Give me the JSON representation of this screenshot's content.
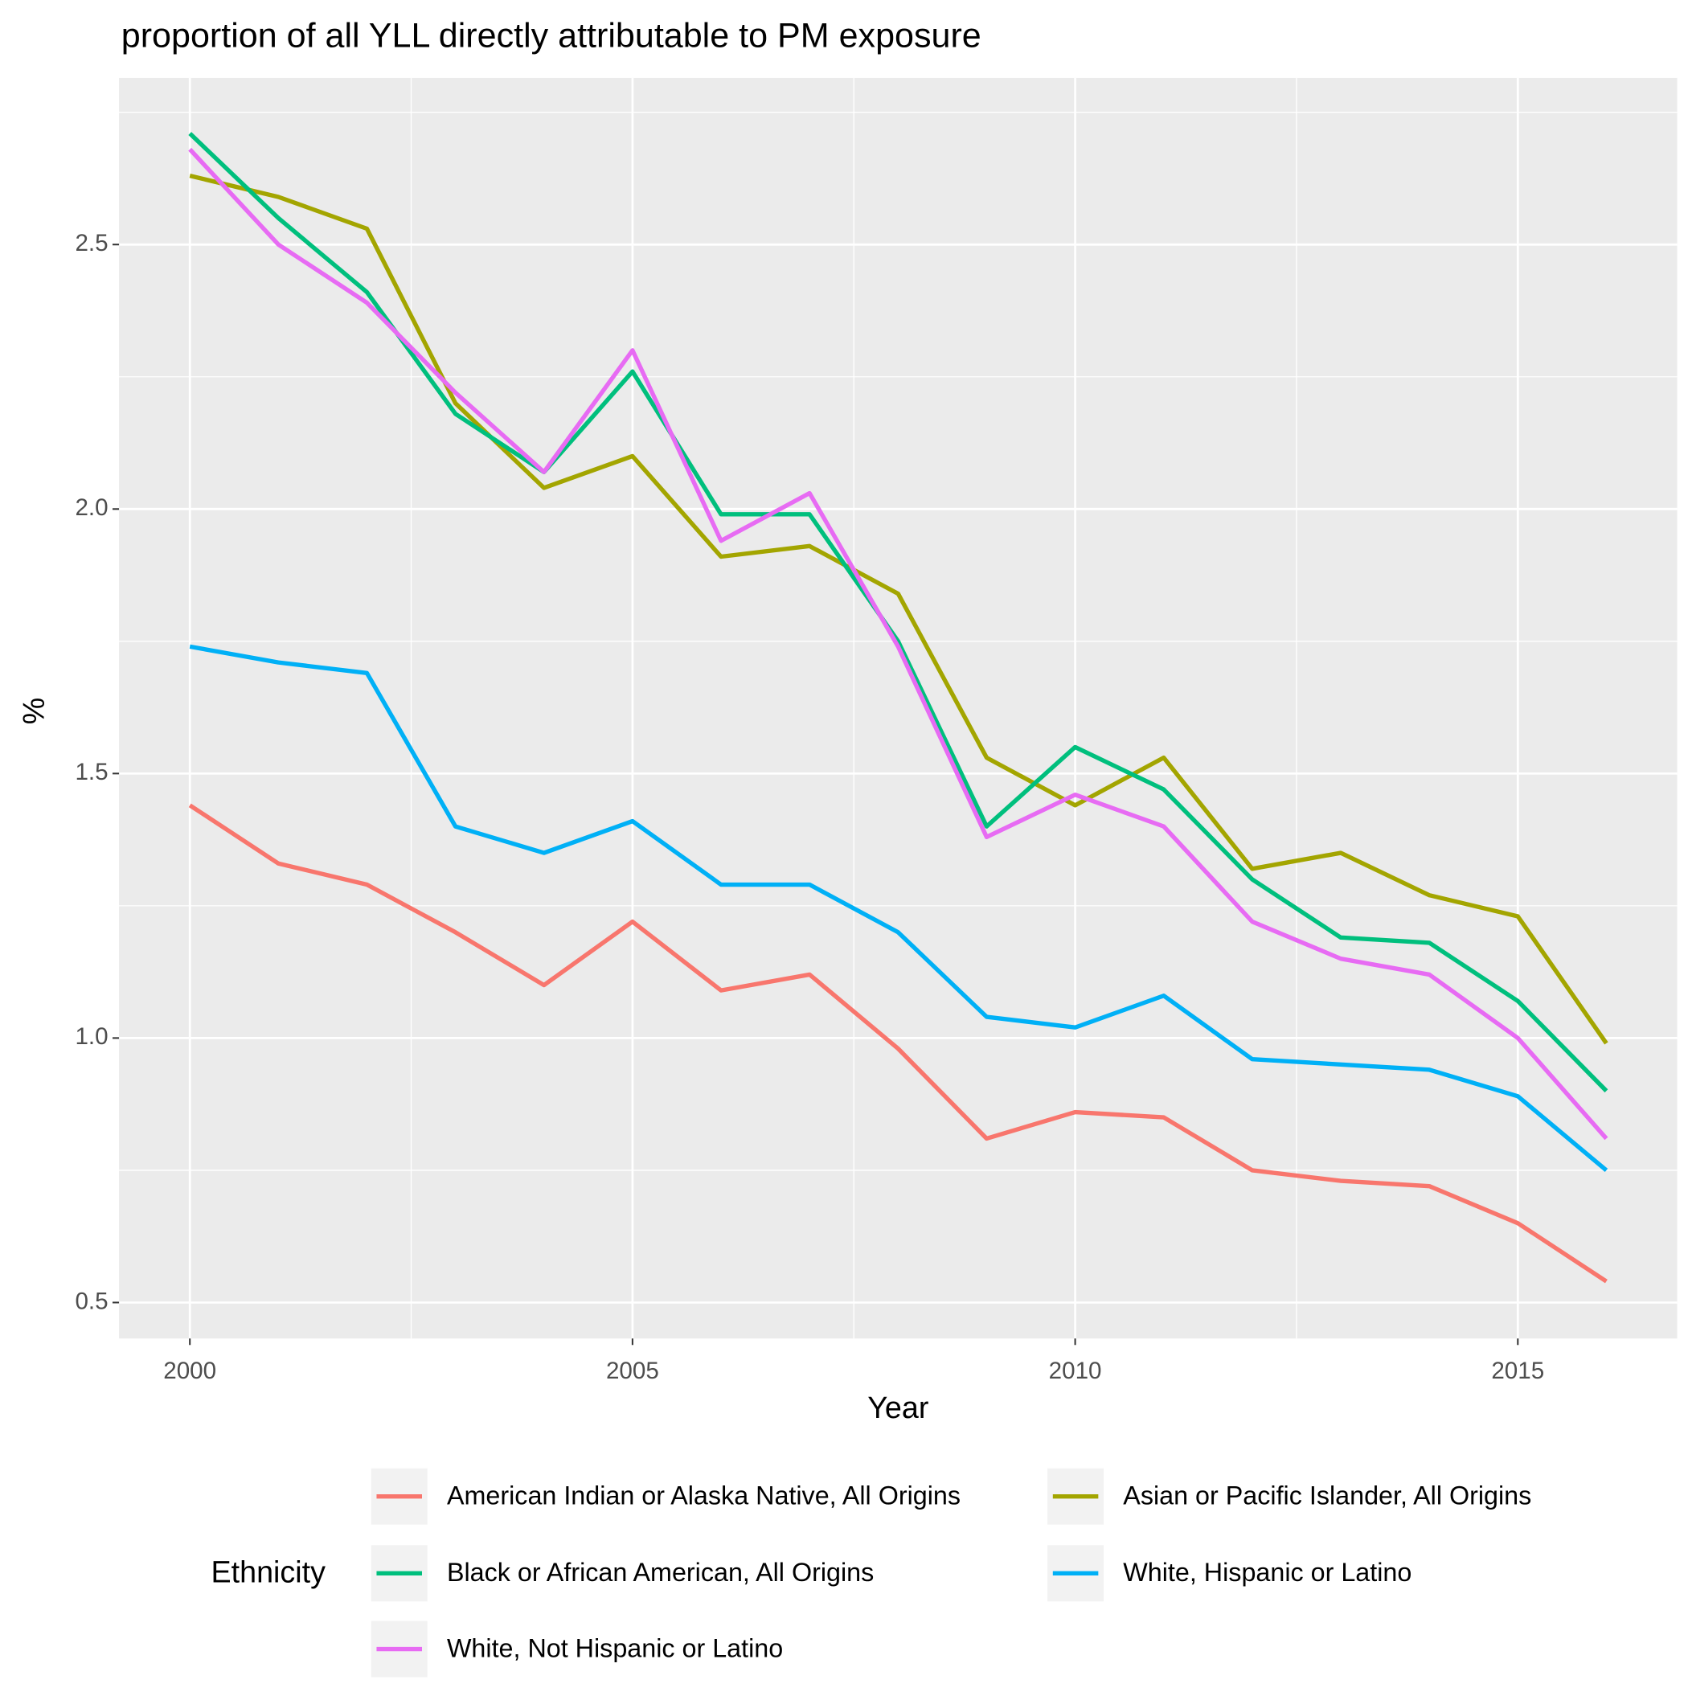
{
  "chart_data": {
    "type": "line",
    "title": "proportion of all YLL directly attributable to PM exposure",
    "x_label": "Year",
    "y_label": "%",
    "x": [
      2000,
      2001,
      2002,
      2003,
      2004,
      2005,
      2006,
      2007,
      2008,
      2009,
      2010,
      2011,
      2012,
      2013,
      2014,
      2015,
      2016
    ],
    "series": [
      {
        "name": "American Indian or Alaska Native, All Origins",
        "color": "#F8766D",
        "values": [
          1.44,
          1.33,
          1.29,
          1.2,
          1.1,
          1.22,
          1.09,
          1.12,
          0.98,
          0.81,
          0.86,
          0.85,
          0.75,
          0.73,
          0.72,
          0.65,
          0.54
        ]
      },
      {
        "name": "Asian or Pacific Islander, All Origins",
        "color": "#A3A500",
        "values": [
          2.63,
          2.59,
          2.53,
          2.2,
          2.04,
          2.1,
          1.91,
          1.93,
          1.84,
          1.53,
          1.44,
          1.53,
          1.32,
          1.35,
          1.27,
          1.23,
          0.99
        ]
      },
      {
        "name": "Black or African American, All Origins",
        "color": "#00BF7D",
        "values": [
          2.71,
          2.55,
          2.41,
          2.18,
          2.07,
          2.26,
          1.99,
          1.99,
          1.75,
          1.4,
          1.55,
          1.47,
          1.3,
          1.19,
          1.18,
          1.07,
          0.9
        ]
      },
      {
        "name": "White, Hispanic or Latino",
        "color": "#00B0F6",
        "values": [
          1.74,
          1.71,
          1.69,
          1.4,
          1.35,
          1.41,
          1.29,
          1.29,
          1.2,
          1.04,
          1.02,
          1.08,
          0.96,
          0.95,
          0.94,
          0.89,
          0.75
        ]
      },
      {
        "name": "White, Not Hispanic or Latino",
        "color": "#E76BF3",
        "values": [
          2.68,
          2.5,
          2.39,
          2.22,
          2.07,
          2.3,
          1.94,
          2.03,
          1.74,
          1.38,
          1.46,
          1.4,
          1.22,
          1.15,
          1.12,
          1.0,
          0.81
        ]
      }
    ],
    "xlim": [
      1999.2,
      2016.8
    ],
    "xticks": [
      2000,
      2005,
      2010,
      2015
    ],
    "ylim": [
      0.432,
      2.815
    ],
    "yticks": [
      {
        "value": 0.5,
        "label": "0.5"
      },
      {
        "value": 1,
        "label": "1.0"
      },
      {
        "value": 1.5,
        "label": "1.5"
      },
      {
        "value": 2,
        "label": "2.0"
      },
      {
        "value": 2.5,
        "label": "2.5"
      }
    ],
    "grid": true,
    "legend_title": "Ethnicity",
    "legend_position": "bottom"
  }
}
